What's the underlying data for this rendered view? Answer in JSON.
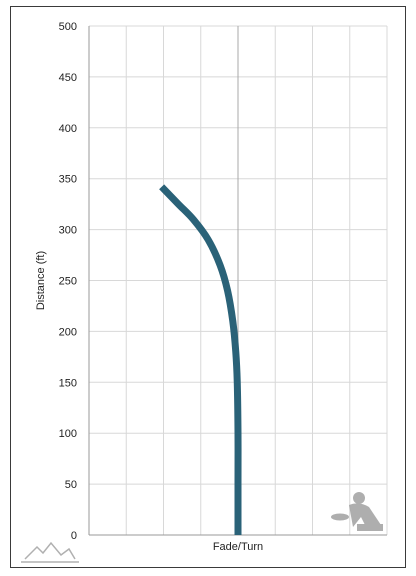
{
  "chart_data": {
    "type": "line",
    "xlabel": "Fade/Turn",
    "ylabel": "Distance (ft)",
    "ylim": [
      0,
      500
    ],
    "y_ticks": [
      "0",
      "50",
      "100",
      "150",
      "200",
      "250",
      "300",
      "350",
      "400",
      "450",
      "500"
    ],
    "xlim": [
      -4,
      4
    ],
    "grid": true,
    "series": [
      {
        "color": "#2a6278",
        "x": [
          0,
          0,
          0,
          -0.02,
          -0.06,
          -0.14,
          -0.28,
          -0.48,
          -0.8,
          -1.2,
          -1.6,
          -2.05
        ],
        "y": [
          0,
          50,
          100,
          150,
          180,
          210,
          240,
          265,
          290,
          310,
          325,
          342
        ]
      }
    ]
  }
}
